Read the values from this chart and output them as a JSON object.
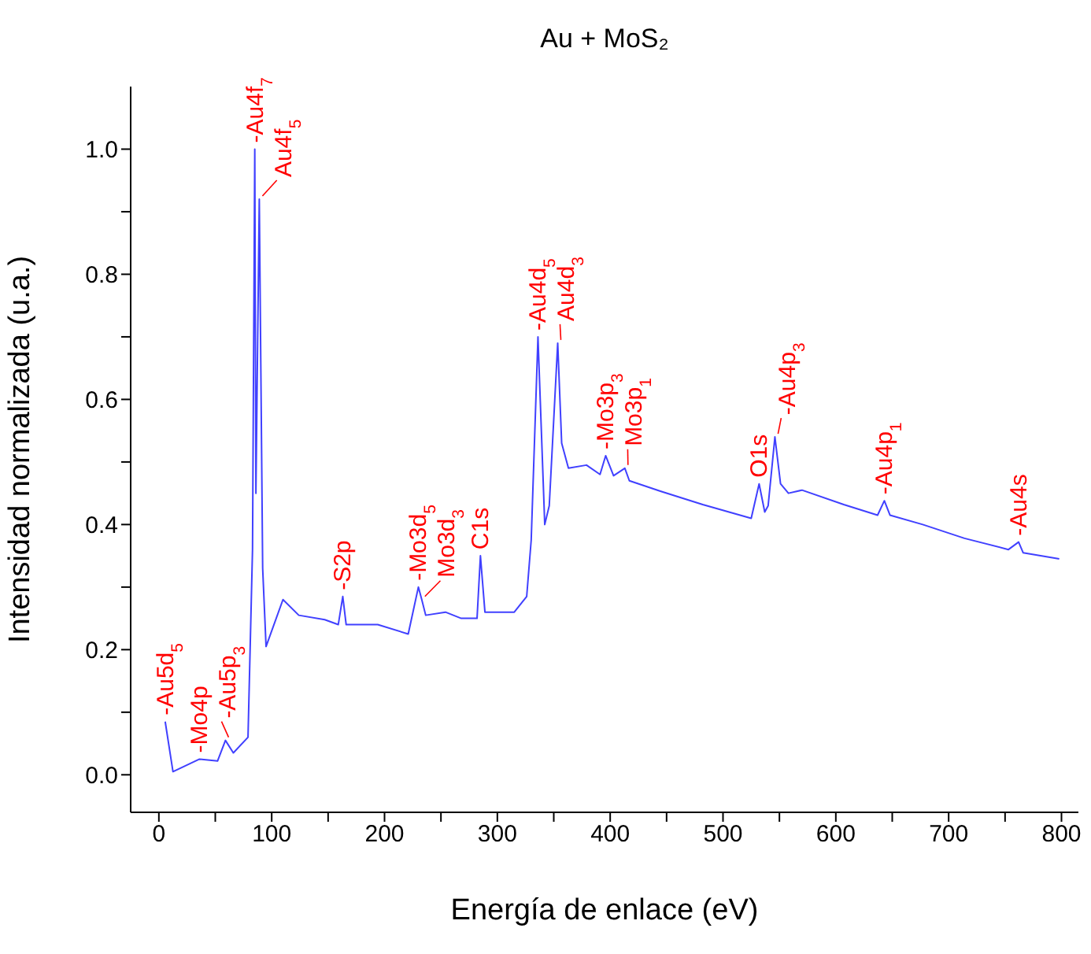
{
  "chart_data": {
    "type": "line",
    "title": "Au + MoS₂",
    "xlabel": "Energía de enlace (eV)",
    "ylabel": "Intensidad normalizada (u.a.)",
    "xlim": [
      -25,
      815
    ],
    "ylim": [
      -0.06,
      1.1
    ],
    "xticks": [
      0,
      {
        "value": 50,
        "label": null
      },
      100,
      {
        "value": 150,
        "label": null
      },
      200,
      {
        "value": 250,
        "label": null
      },
      300,
      {
        "value": 350,
        "label": null
      },
      400,
      {
        "value": 450,
        "label": null
      },
      500,
      {
        "value": 550,
        "label": null
      },
      600,
      {
        "value": 650,
        "label": null
      },
      700,
      {
        "value": 750,
        "label": null
      },
      800
    ],
    "yticks": [
      {
        "value": 0,
        "label": "0.0"
      },
      {
        "value": 0.1,
        "label": null
      },
      0.2,
      {
        "value": 0.3,
        "label": null
      },
      0.4,
      {
        "value": 0.5,
        "label": null
      },
      0.6,
      {
        "value": 0.7,
        "label": null
      },
      0.8,
      {
        "value": 0.9,
        "label": null
      },
      {
        "value": 1,
        "label": "1.0"
      }
    ],
    "grid": false,
    "legend": false,
    "marker": "none",
    "line_style": "solid",
    "x": [
      5.6,
      12.5,
      36,
      52,
      59,
      66,
      79,
      83,
      85,
      86,
      89,
      92,
      95,
      110,
      124,
      147,
      159,
      163,
      166,
      194,
      221,
      230,
      233,
      236.5,
      254,
      268,
      282,
      285,
      289,
      315,
      326,
      330,
      336,
      342,
      346,
      353.5,
      357,
      363,
      379,
      391,
      396,
      403,
      413,
      417,
      445,
      482,
      525,
      532,
      537,
      540,
      546,
      551,
      558,
      570,
      607,
      637,
      643,
      648,
      677,
      714,
      753,
      762,
      766,
      798
    ],
    "series": [
      {
        "color": "#4040ff",
        "values": [
          0.085,
          0.005,
          0.025,
          0.022,
          0.055,
          0.035,
          0.06,
          0.36,
          1.0,
          0.45,
          0.92,
          0.33,
          0.205,
          0.28,
          0.255,
          0.248,
          0.24,
          0.285,
          0.24,
          0.24,
          0.225,
          0.3,
          0.28,
          0.255,
          0.26,
          0.25,
          0.25,
          0.35,
          0.26,
          0.26,
          0.285,
          0.375,
          0.7,
          0.4,
          0.43,
          0.69,
          0.53,
          0.49,
          0.495,
          0.48,
          0.51,
          0.478,
          0.49,
          0.47,
          0.453,
          0.432,
          0.41,
          0.465,
          0.42,
          0.43,
          0.54,
          0.465,
          0.45,
          0.455,
          0.432,
          0.415,
          0.438,
          0.415,
          0.4,
          0.378,
          0.36,
          0.372,
          0.355,
          0.345
        ]
      }
    ],
    "annotations": [
      {
        "text": "-Au5d$_{5}$",
        "x": 5.6,
        "y": 0.085
      },
      {
        "text": "-Mo4p",
        "x": 36,
        "y": 0.025
      },
      {
        "text": "-Au5p$_{3}$",
        "x": 59,
        "y": 0.055
      },
      {
        "text": "-Au4f$_{7}$",
        "x": 85,
        "y": 1.0
      },
      {
        "text": "Au4f$_{5}$",
        "x": 89,
        "y": 0.92
      },
      {
        "text": "-S2p",
        "x": 163,
        "y": 0.285
      },
      {
        "text": "-Mo3d$_{5}$",
        "x": 230,
        "y": 0.3
      },
      {
        "text": "Mo3d$_{3}$",
        "x": 233,
        "y": 0.28
      },
      {
        "text": "C1s",
        "x": 285,
        "y": 0.35
      },
      {
        "text": "-Au4d$_{5}$",
        "x": 336,
        "y": 0.7
      },
      {
        "text": "Au4d$_{3}$",
        "x": 353.5,
        "y": 0.69
      },
      {
        "text": "-Mo3p$_{3}$",
        "x": 396,
        "y": 0.51
      },
      {
        "text": "Mo3p$_{1}$",
        "x": 413,
        "y": 0.49
      },
      {
        "text": "O1s",
        "x": 532,
        "y": 0.465
      },
      {
        "text": "-Au4p$_{3}$",
        "x": 546,
        "y": 0.54
      },
      {
        "text": "-Au4p$_{1}$",
        "x": 643,
        "y": 0.438
      },
      {
        "text": "-Au4s",
        "x": 762,
        "y": 0.372
      }
    ]
  }
}
